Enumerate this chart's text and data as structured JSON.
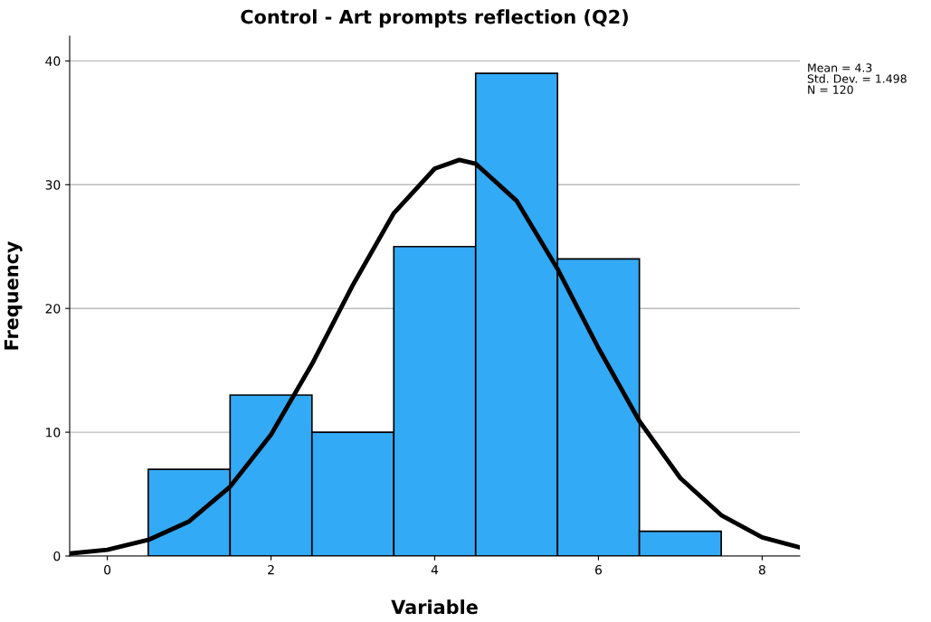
{
  "chart_data": {
    "type": "histogram",
    "title": "Control - Art prompts reflection (Q2)",
    "xlabel": "Variable",
    "ylabel": "Frequency",
    "bins": [
      0.5,
      1.5,
      2.5,
      3.5,
      4.5,
      5.5,
      6.5,
      7.5
    ],
    "values": [
      7,
      13,
      10,
      25,
      39,
      24,
      2
    ],
    "color": "#33aaf5",
    "series": [
      {
        "type": "line",
        "color": "#000000",
        "x": [
          -0.46,
          0,
          0.5,
          1,
          1.5,
          2,
          2.5,
          3,
          3.5,
          4,
          4.3,
          4.5,
          5,
          5.5,
          6,
          6.5,
          7,
          7.5,
          8,
          8.46
        ],
        "values": [
          0.2,
          0.5,
          1.3,
          2.8,
          5.6,
          9.8,
          15.5,
          21.9,
          27.7,
          31.3,
          32.0,
          31.7,
          28.7,
          23.2,
          16.8,
          10.9,
          6.3,
          3.3,
          1.5,
          0.7
        ]
      }
    ],
    "xlim": [
      -0.46,
      8.46
    ],
    "xticks": [
      0,
      2,
      4,
      6,
      8
    ],
    "ylim": [
      0,
      42
    ],
    "yticks": [
      0,
      10,
      20,
      30,
      40
    ],
    "grid": "y",
    "annotations": [
      "Mean = 4.3\nStd. Dev. = 1.498\nN = 120"
    ]
  }
}
